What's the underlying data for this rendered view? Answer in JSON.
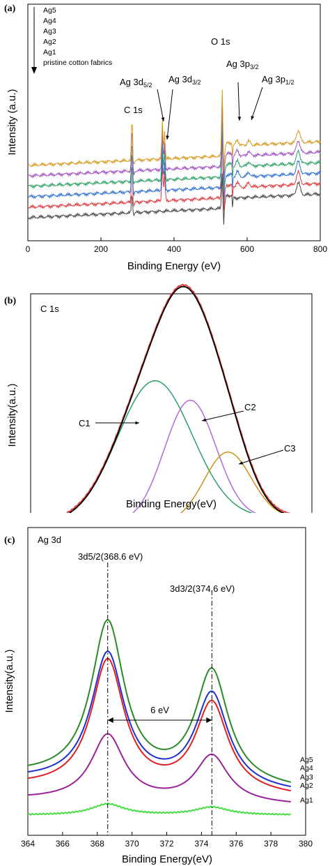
{
  "chart_data": [
    {
      "panel": "(a)",
      "type": "line",
      "xlabel": "Binding Energy (eV)",
      "ylabel": "Intensity (a.u.)",
      "xlim": [
        0,
        800
      ],
      "xticks": [
        "0",
        "200",
        "400",
        "600",
        "800"
      ],
      "legend_title": "",
      "legend_entries": [
        "Ag5",
        "Ag4",
        "Ag3",
        "Ag2",
        "Ag1",
        "pristine cotton fabrics"
      ],
      "annotations": [
        {
          "text": "C 1s",
          "x": 285
        },
        {
          "text": "Ag 3d",
          "sub": "5/2",
          "x": 368
        },
        {
          "text": "Ag 3d",
          "sub": "3/2",
          "x": 374
        },
        {
          "text": "O 1s",
          "x": 532
        },
        {
          "text": "Ag 3p",
          "sub": "3/2",
          "x": 573
        },
        {
          "text": "Ag 3p",
          "sub": "1/2",
          "x": 604
        }
      ],
      "series": [
        {
          "name": "pristine cotton fabrics",
          "color": "#444444",
          "offset": 0
        },
        {
          "name": "Ag1",
          "color": "#e0393b",
          "offset": 1
        },
        {
          "name": "Ag2",
          "color": "#2e6fd0",
          "offset": 2
        },
        {
          "name": "Ag3",
          "color": "#2aa064",
          "offset": 3
        },
        {
          "name": "Ag4",
          "color": "#a14fc2",
          "offset": 4
        },
        {
          "name": "Ag5",
          "color": "#d49a1c",
          "offset": 5
        }
      ],
      "peaks_eV": [
        285,
        368,
        374,
        532,
        573,
        604,
        740
      ]
    },
    {
      "panel": "(b)",
      "type": "line",
      "title": "C 1s",
      "xlabel": "Binding Energy(eV)",
      "ylabel": "Intensity(a.u.)",
      "xlim": [
        280,
        292
      ],
      "xticks": [
        "280",
        "282",
        "284",
        "286",
        "288",
        "290",
        "292"
      ],
      "components": [
        {
          "name": "C1",
          "center": 285.3,
          "height": 0.68,
          "width": 1.6,
          "color": "#2aa064"
        },
        {
          "name": "C2",
          "center": 286.8,
          "height": 0.58,
          "width": 1.1,
          "color": "#b06ad8"
        },
        {
          "name": "C3",
          "center": 288.4,
          "height": 0.32,
          "width": 1.0,
          "color": "#c99514"
        }
      ],
      "background_color": "#2e6fd0",
      "envelope_color": "#000000",
      "raw_color": "#e0393b"
    },
    {
      "panel": "(c)",
      "type": "line",
      "title": "Ag 3d",
      "xlabel": "Binding Energy(eV)",
      "ylabel": "Intensity(a.u.)",
      "xlim": [
        364,
        380
      ],
      "xticks": [
        "364",
        "366",
        "368",
        "370",
        "372",
        "374",
        "376",
        "378",
        "380"
      ],
      "peak_labels": [
        "3d5/2(368.6 eV)",
        "3d3/2(374.6 eV)"
      ],
      "peak_positions": [
        368.6,
        374.6
      ],
      "split_label": "6 eV",
      "series": [
        {
          "name": "Ag5",
          "color": "#2a8a2a",
          "p1": 1.0,
          "p2": 0.72,
          "base": 0.25
        },
        {
          "name": "Ag4",
          "color": "#1f2fcf",
          "p1": 0.83,
          "p2": 0.6,
          "base": 0.22
        },
        {
          "name": "Ag3",
          "color": "#e02020",
          "p1": 0.82,
          "p2": 0.57,
          "base": 0.18
        },
        {
          "name": "Ag2",
          "color": "#992299",
          "p1": 0.42,
          "p2": 0.3,
          "base": 0.1
        },
        {
          "name": "Ag1",
          "color": "#44dd44",
          "p1": 0.07,
          "p2": 0.05,
          "base": 0.0
        }
      ]
    }
  ]
}
